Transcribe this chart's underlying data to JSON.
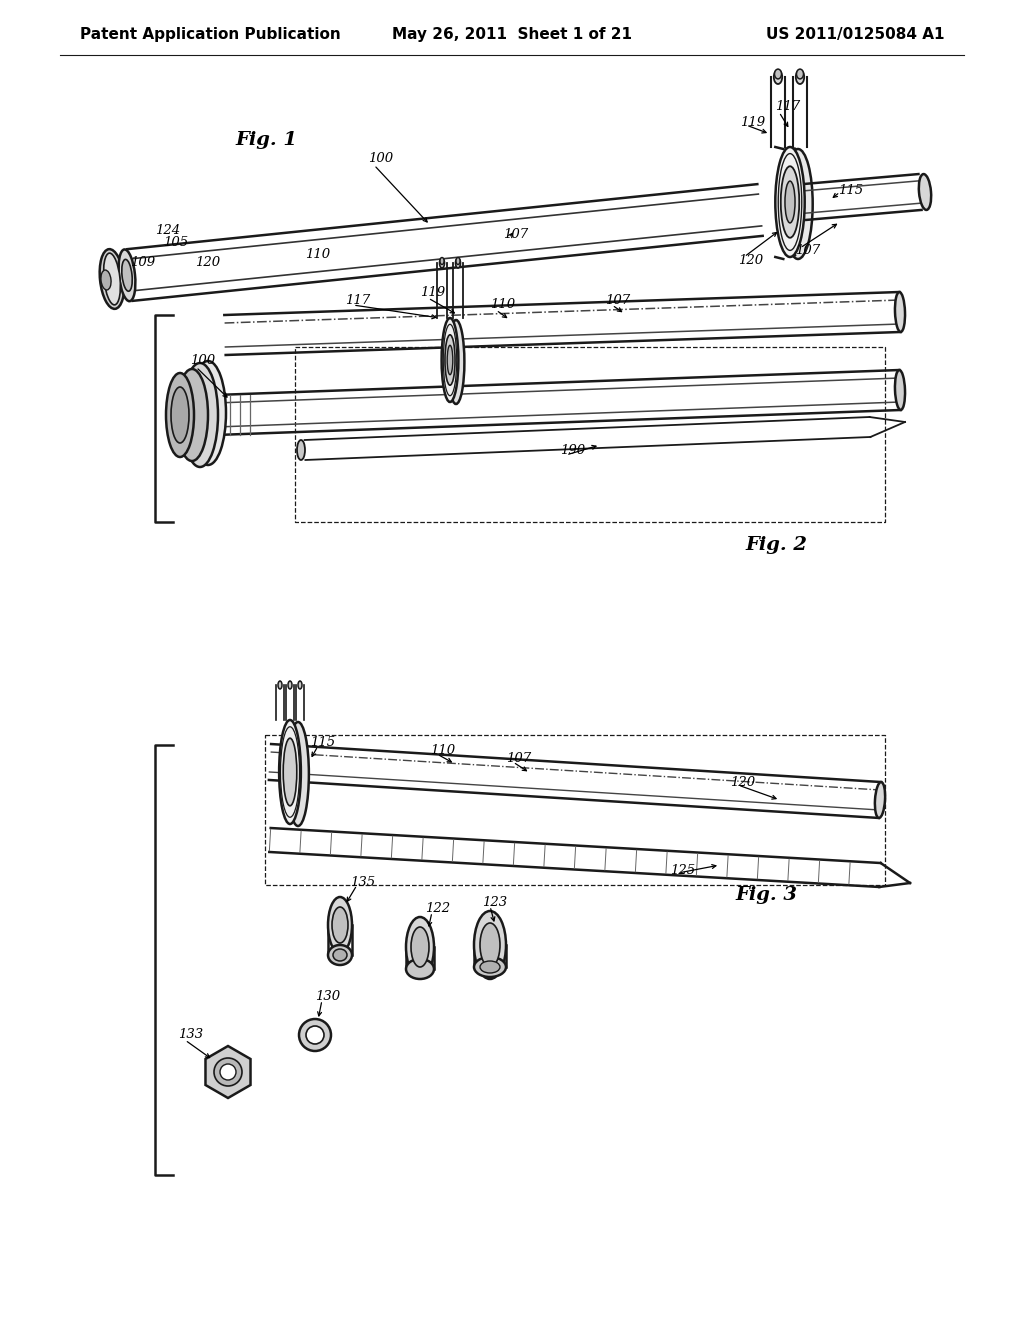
{
  "background_color": "#ffffff",
  "header_left": "Patent Application Publication",
  "header_center": "May 26, 2011  Sheet 1 of 21",
  "header_right": "US 2011/0125084 A1",
  "line_color": "#1a1a1a",
  "gray_light": "#e8e8e8",
  "gray_mid": "#c8c8c8",
  "gray_dark": "#a8a8a8"
}
